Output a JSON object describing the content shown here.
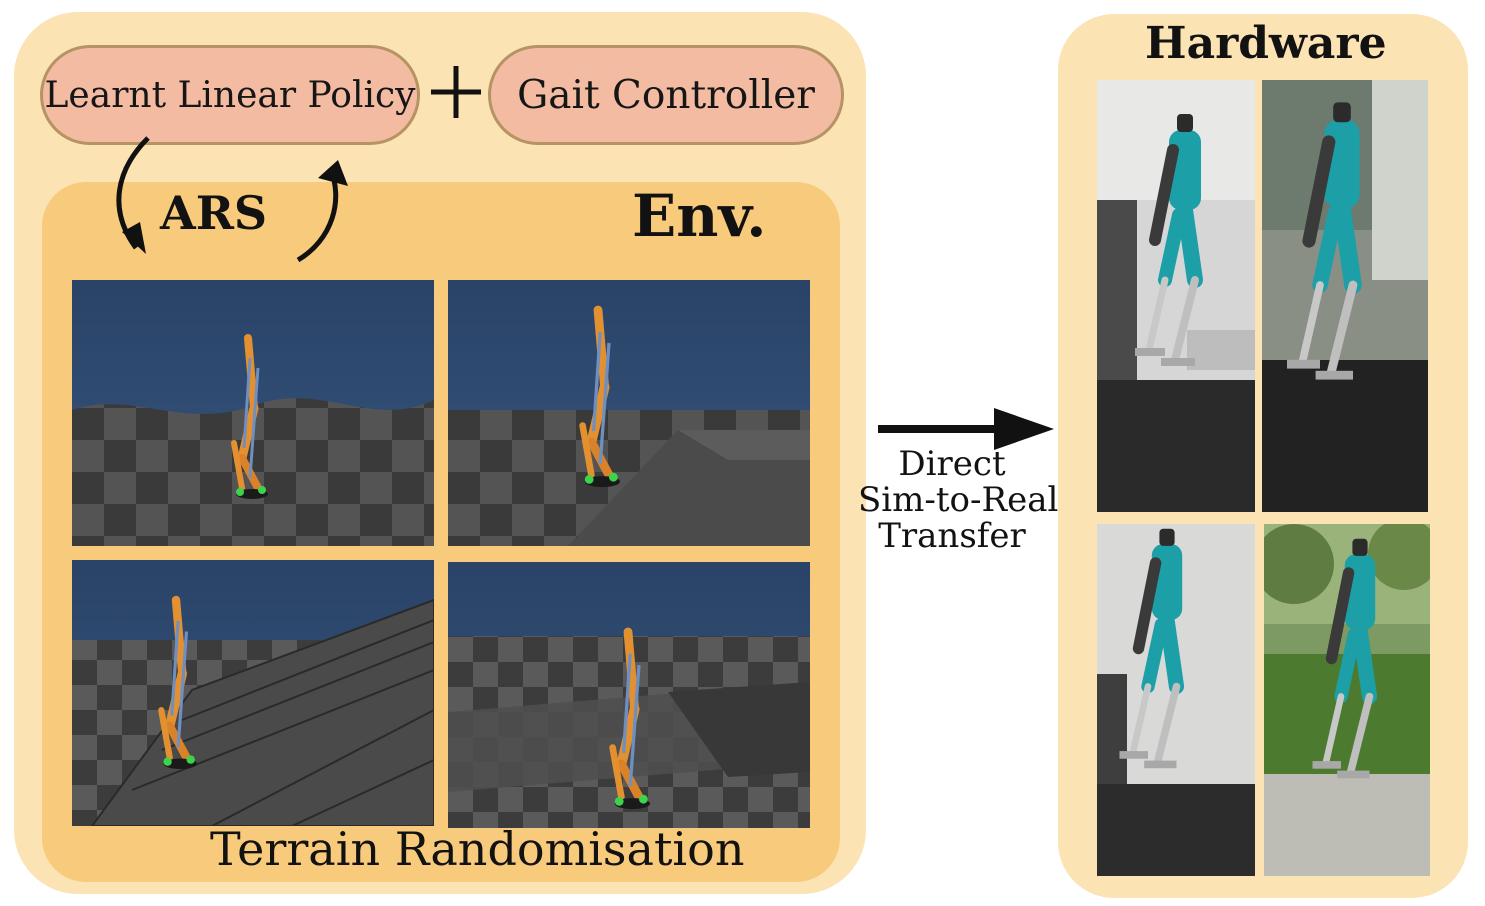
{
  "policy_box": {
    "label": "Learnt Linear Policy"
  },
  "plus_symbol": "+",
  "gait_box": {
    "label": "Gait Controller"
  },
  "loop": {
    "label": "ARS"
  },
  "environment": {
    "label": "Env.",
    "caption": "Terrain Randomisation",
    "terrains": [
      "hills",
      "ramp",
      "stairs",
      "steps"
    ]
  },
  "transfer": {
    "lines": [
      "Direct",
      "Sim-to-Real",
      "Transfer"
    ]
  },
  "hardware": {
    "label": "Hardware"
  },
  "colors": {
    "outer_panel": "#fbe3b4",
    "env_panel": "#f8cb7c",
    "pill_fill": "#f3bba2",
    "pill_border": "#b59363",
    "sim_sky": "#2f4c72",
    "robot_orange": "#e39130",
    "robot_teal": "#1c9fa6"
  }
}
